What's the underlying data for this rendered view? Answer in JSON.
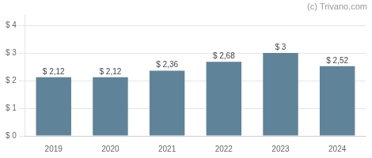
{
  "chart_data": {
    "type": "bar",
    "categories": [
      "2019",
      "2020",
      "2021",
      "2022",
      "2023",
      "2024"
    ],
    "values": [
      2.12,
      2.12,
      2.36,
      2.68,
      3.0,
      2.52
    ],
    "value_labels": [
      "$ 2,12",
      "$ 2,12",
      "$ 2,36",
      "$ 2,68",
      "$ 3",
      "$ 2,52"
    ],
    "data_labels": true,
    "color": "#5f8399",
    "ylim": [
      0,
      4.4
    ],
    "yticks": [
      {
        "value": 0,
        "label": "$ 0"
      },
      {
        "value": 1,
        "label": "$ 1"
      },
      {
        "value": 2,
        "label": "$ 2"
      },
      {
        "value": 3,
        "label": "$ 3"
      },
      {
        "value": 4,
        "label": "$ 4"
      }
    ],
    "grid": true,
    "annotations": [
      "(c) Trivano.com"
    ]
  }
}
